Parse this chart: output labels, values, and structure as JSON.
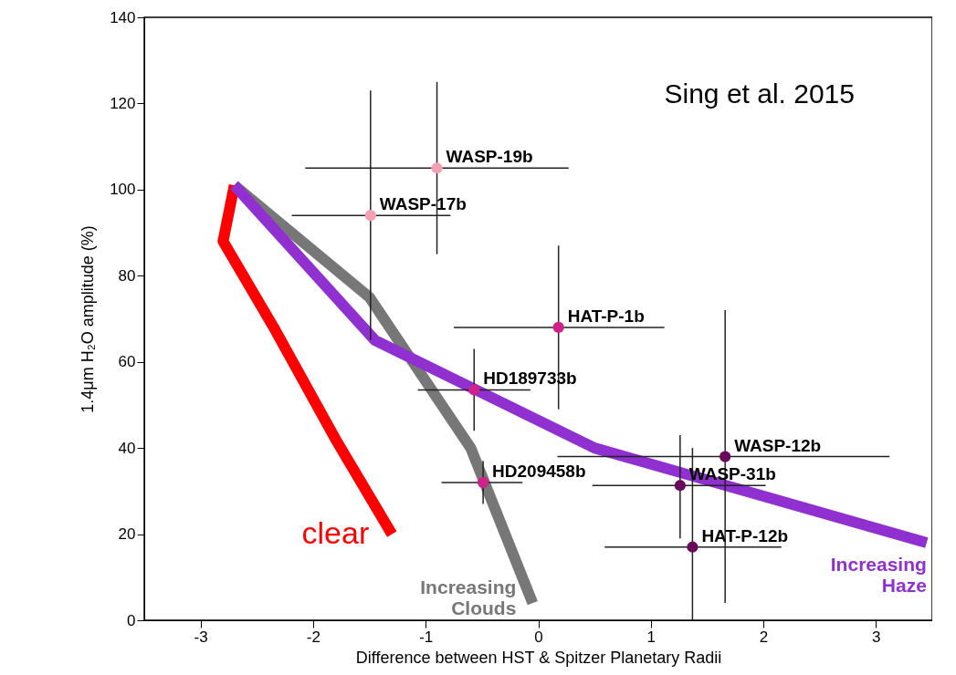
{
  "chart_data": {
    "type": "scatter",
    "xlabel": "Difference between HST & Spitzer Planetary Radii",
    "ylabel": "1.4μm H₂O amplitude (%)",
    "xlim": [
      -3.5,
      3.5
    ],
    "ylim": [
      0,
      140
    ],
    "xticks": [
      -3,
      -2,
      -1,
      0,
      1,
      2,
      3
    ],
    "yticks": [
      0,
      20,
      40,
      60,
      80,
      100,
      120,
      140
    ],
    "series": [
      {
        "type": "line",
        "name": "clear",
        "color": "#ff0000",
        "x": [
          -2.7,
          -2.8,
          -2.35,
          -1.8,
          -1.3
        ],
        "values": [
          101,
          88,
          68,
          42,
          20
        ]
      },
      {
        "type": "line",
        "name": "Increasing Clouds",
        "color": "#777777",
        "x": [
          -2.7,
          -1.5,
          -0.6,
          -0.05
        ],
        "values": [
          101,
          75,
          40,
          4
        ]
      },
      {
        "type": "line",
        "name": "Increasing Haze",
        "color": "#9030d0",
        "x": [
          -2.7,
          -1.45,
          0.5,
          3.45
        ],
        "values": [
          101,
          65,
          40,
          18
        ]
      },
      {
        "marker": "circle",
        "x": [
          -0.9,
          -1.49,
          0.18,
          -0.57,
          -0.49,
          1.26,
          1.66,
          1.37
        ],
        "values": [
          105,
          94,
          68,
          53.5,
          32,
          31.3,
          38,
          17
        ],
        "colors": [
          "#f4a0b4",
          "#f4a0b4",
          "#d0208c",
          "#d0208c",
          "#d0208c",
          "#6a0a5a",
          "#6a0a5a",
          "#6a0a5a"
        ],
        "errors": [
          [
            85,
            125
          ],
          [
            65,
            123
          ],
          [
            49,
            87
          ],
          [
            44,
            63
          ],
          [
            27,
            37
          ],
          [
            19,
            43
          ],
          [
            4,
            72
          ],
          [
            0,
            40
          ]
        ],
        "xerrors": [
          [
            -2.07,
            0.27
          ],
          [
            -2.19,
            -0.78
          ],
          [
            -0.75,
            1.12
          ],
          [
            -1.07,
            -0.07
          ],
          [
            -0.86,
            -0.14
          ],
          [
            0.48,
            2.02
          ],
          [
            0.17,
            3.12
          ],
          [
            0.59,
            2.16
          ]
        ]
      }
    ],
    "annotations": [
      "Sing et al. 2015",
      {
        "text": "WASP-19b",
        "x": -0.9,
        "y": 105
      },
      {
        "text": "WASP-17b",
        "x": -1.49,
        "y": 94
      },
      {
        "text": "HAT-P-1b",
        "x": 0.18,
        "y": 68
      },
      {
        "text": "HD189733b",
        "x": -0.57,
        "y": 53.5
      },
      {
        "text": "HD209458b",
        "x": -0.49,
        "y": 32
      },
      {
        "text": "WASP-31b",
        "x": 1.26,
        "y": 31.3
      },
      {
        "text": "WASP-12b",
        "x": 1.66,
        "y": 38
      },
      {
        "text": "HAT-P-12b",
        "x": 1.37,
        "y": 17
      }
    ]
  }
}
